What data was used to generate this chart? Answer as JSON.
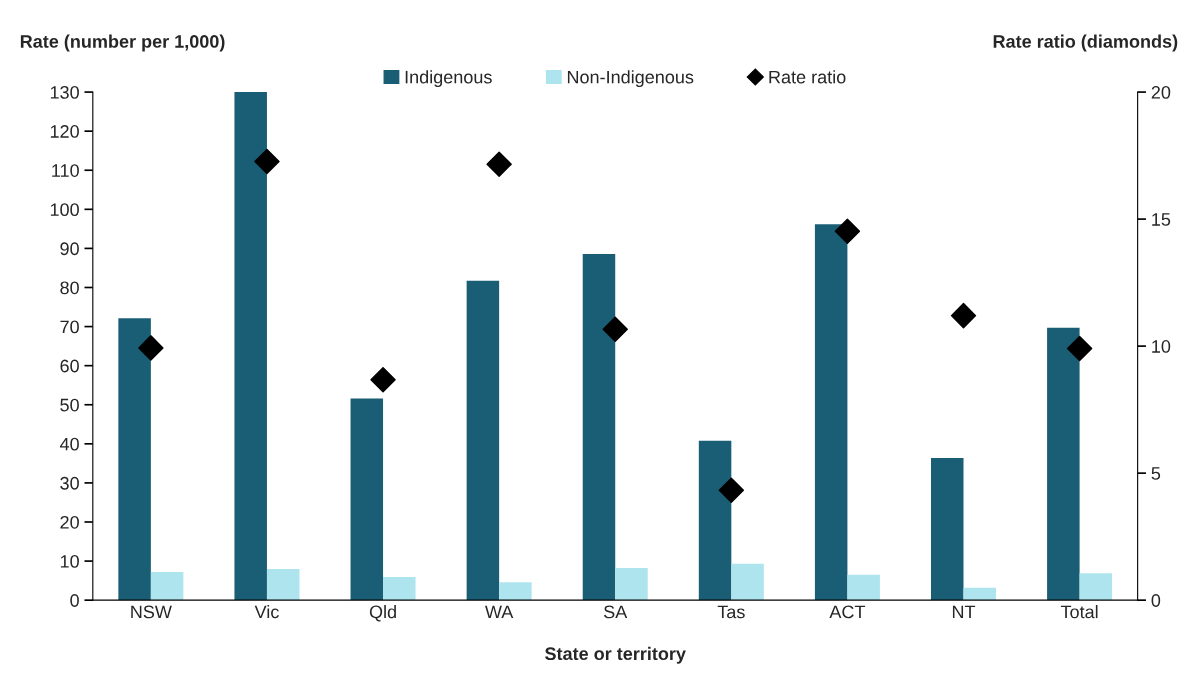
{
  "chart_data": {
    "type": "bar",
    "ylabel": "Rate (number per 1,000)",
    "y2label": "Rate ratio (diamonds)",
    "xlabel": "State or territory",
    "categories": [
      "NSW",
      "Vic",
      "Qld",
      "WA",
      "SA",
      "Tas",
      "ACT",
      "NT",
      "Total"
    ],
    "series": [
      {
        "name": "Indigenous",
        "color": "#1a5e75",
        "values": [
          72.1,
          130,
          51.6,
          81.7,
          88.6,
          40.8,
          96.2,
          36.4,
          69.7
        ]
      },
      {
        "name": "Non-Indigenous",
        "color": "#aee4ee",
        "values": [
          7.2,
          8.0,
          5.9,
          4.6,
          8.2,
          9.3,
          6.5,
          3.2,
          6.9
        ]
      },
      {
        "name": "Rate ratio",
        "type": "scatter",
        "axis": "y2",
        "marker": "diamond",
        "color": "#000000",
        "values": [
          9.93,
          17.27,
          8.68,
          17.16,
          10.66,
          4.33,
          14.52,
          11.2,
          9.91
        ]
      }
    ],
    "ylim": [
      0,
      130
    ],
    "yticks": [
      0,
      10,
      20,
      30,
      40,
      50,
      60,
      70,
      80,
      90,
      100,
      110,
      120,
      130
    ],
    "y2lim": [
      0,
      20
    ],
    "y2ticks": [
      0,
      5,
      10,
      15,
      20
    ],
    "grid": false,
    "legend": "top"
  }
}
